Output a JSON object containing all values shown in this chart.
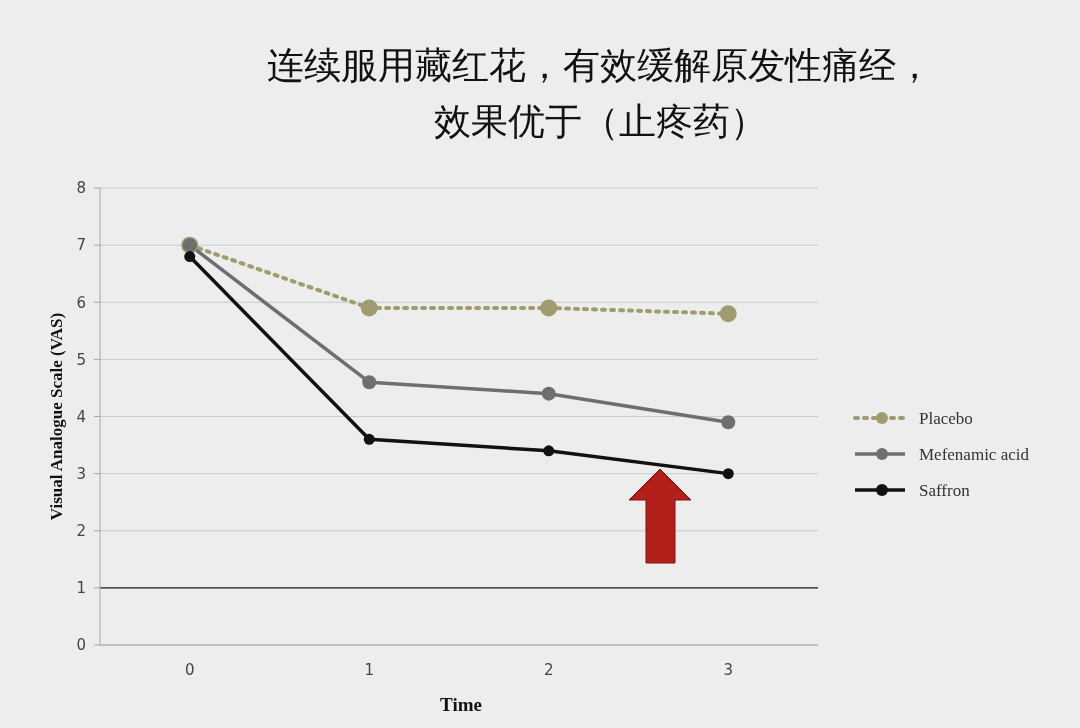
{
  "chart_data": {
    "type": "line",
    "title": "连续服用藏红花，有效缓解原发性痛经，效果优于（止疼药）",
    "xlabel": "Time",
    "ylabel": "Visual Analogue Scale (VAS)",
    "categories": [
      "0",
      "1",
      "2",
      "3"
    ],
    "ylim": [
      0,
      8
    ],
    "yticks": [
      0,
      1,
      2,
      3,
      4,
      5,
      6,
      7,
      8
    ],
    "grid": "y",
    "legend": "right",
    "marker": "circle",
    "ref_lines": [
      {
        "axis": "y",
        "value": 1,
        "color": "#222222"
      }
    ],
    "series": [
      {
        "name": "Placebo",
        "color": "#a19c70",
        "values": [
          7,
          5.9,
          5.9,
          5.8
        ],
        "line_style": "dotted"
      },
      {
        "name": "Mefenamic acid",
        "color": "#6e6e6e",
        "values": [
          7,
          4.6,
          4.4,
          3.9
        ],
        "line_style": "solid"
      },
      {
        "name": "Saffron",
        "color": "#111111",
        "values": [
          6.8,
          3.6,
          3.4,
          3.0
        ],
        "line_style": "solid"
      }
    ]
  }
}
